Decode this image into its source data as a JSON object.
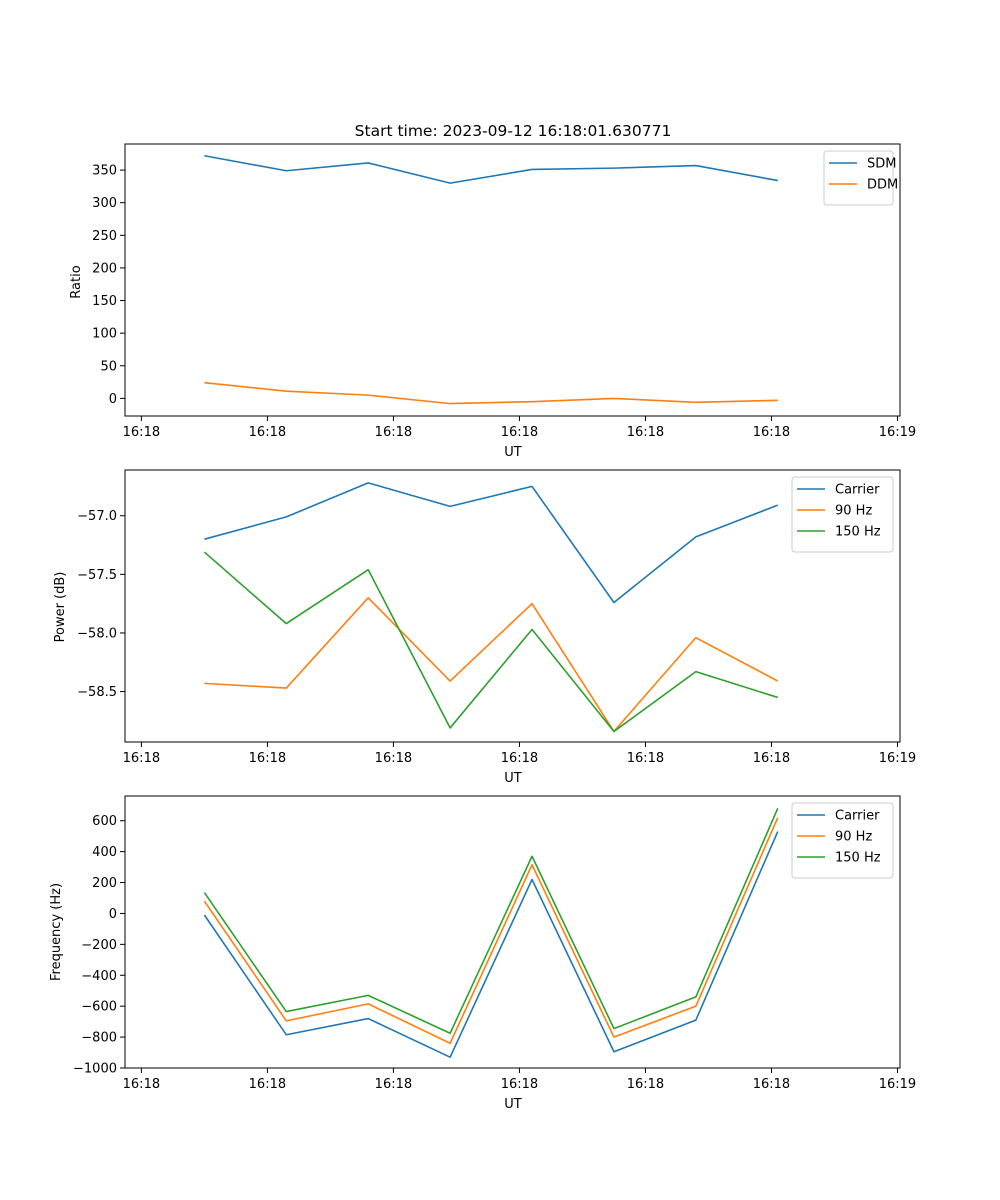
{
  "chart_data": [
    {
      "type": "line",
      "title": "Start time: 2023-09-12 16:18:01.630771",
      "xlabel": "UT",
      "ylabel": "Ratio",
      "x_tick_labels": [
        "16:18",
        "16:18",
        "16:18",
        "16:18",
        "16:18",
        "16:18",
        "16:19"
      ],
      "x_tick_positions": [
        0,
        1,
        2,
        3,
        4,
        5,
        6
      ],
      "x": [
        0.5,
        1.15,
        1.8,
        2.45,
        3.1,
        3.75,
        4.4,
        5.05
      ],
      "xlim": [
        -0.13,
        6.02
      ],
      "ylim": [
        -27,
        390
      ],
      "y_ticks": [
        0,
        50,
        100,
        150,
        200,
        250,
        300,
        350
      ],
      "y_tick_labels": [
        "0",
        "50",
        "100",
        "150",
        "200",
        "250",
        "300",
        "350"
      ],
      "legend": "top-right",
      "series": [
        {
          "name": "SDM",
          "color": "#1f77b4",
          "values": [
            372,
            349,
            361,
            330,
            351,
            353,
            357,
            334
          ]
        },
        {
          "name": "DDM",
          "color": "#ff7f0e",
          "values": [
            24,
            11,
            5,
            -8,
            -5,
            0,
            -6,
            -3
          ]
        }
      ]
    },
    {
      "type": "line",
      "title": "",
      "xlabel": "UT",
      "ylabel": "Power (dB)",
      "x_tick_labels": [
        "16:18",
        "16:18",
        "16:18",
        "16:18",
        "16:18",
        "16:18",
        "16:19"
      ],
      "x_tick_positions": [
        0,
        1,
        2,
        3,
        4,
        5,
        6
      ],
      "x": [
        0.5,
        1.15,
        1.8,
        2.45,
        3.1,
        3.75,
        4.4,
        5.05
      ],
      "xlim": [
        -0.13,
        6.02
      ],
      "ylim": [
        -58.93,
        -56.61
      ],
      "y_ticks": [
        -58.5,
        -58.0,
        -57.5,
        -57.0
      ],
      "y_tick_labels": [
        "−58.5",
        "−58.0",
        "−57.5",
        "−57.0"
      ],
      "legend": "top-right",
      "series": [
        {
          "name": "Carrier",
          "color": "#1f77b4",
          "values": [
            -57.2,
            -57.01,
            -56.72,
            -56.92,
            -56.75,
            -57.74,
            -57.18,
            -56.91
          ]
        },
        {
          "name": "90 Hz",
          "color": "#ff7f0e",
          "values": [
            -58.43,
            -58.47,
            -57.7,
            -58.41,
            -57.75,
            -58.84,
            -58.04,
            -58.41
          ]
        },
        {
          "name": "150 Hz",
          "color": "#2ca02c",
          "values": [
            -57.31,
            -57.92,
            -57.46,
            -58.81,
            -57.97,
            -58.84,
            -58.33,
            -58.55
          ]
        }
      ]
    },
    {
      "type": "line",
      "title": "",
      "xlabel": "UT",
      "ylabel": "Frequency (Hz)",
      "x_tick_labels": [
        "16:18",
        "16:18",
        "16:18",
        "16:18",
        "16:18",
        "16:18",
        "16:19"
      ],
      "x_tick_positions": [
        0,
        1,
        2,
        3,
        4,
        5,
        6
      ],
      "x": [
        0.5,
        1.15,
        1.8,
        2.45,
        3.1,
        3.75,
        4.4,
        5.05
      ],
      "xlim": [
        -0.13,
        6.02
      ],
      "ylim": [
        -1000,
        760
      ],
      "y_ticks": [
        -1000,
        -800,
        -600,
        -400,
        -200,
        0,
        200,
        400,
        600
      ],
      "y_tick_labels": [
        "−1000",
        "−800",
        "−600",
        "−400",
        "−200",
        "0",
        "200",
        "400",
        "600"
      ],
      "legend": "top-right",
      "series": [
        {
          "name": "Carrier",
          "color": "#1f77b4",
          "values": [
            -10,
            -785,
            -680,
            -930,
            220,
            -895,
            -690,
            530
          ]
        },
        {
          "name": "90 Hz",
          "color": "#ff7f0e",
          "values": [
            80,
            -695,
            -585,
            -840,
            315,
            -800,
            -600,
            620
          ]
        },
        {
          "name": "150 Hz",
          "color": "#2ca02c",
          "values": [
            135,
            -635,
            -530,
            -775,
            370,
            -745,
            -540,
            680
          ]
        }
      ]
    }
  ]
}
